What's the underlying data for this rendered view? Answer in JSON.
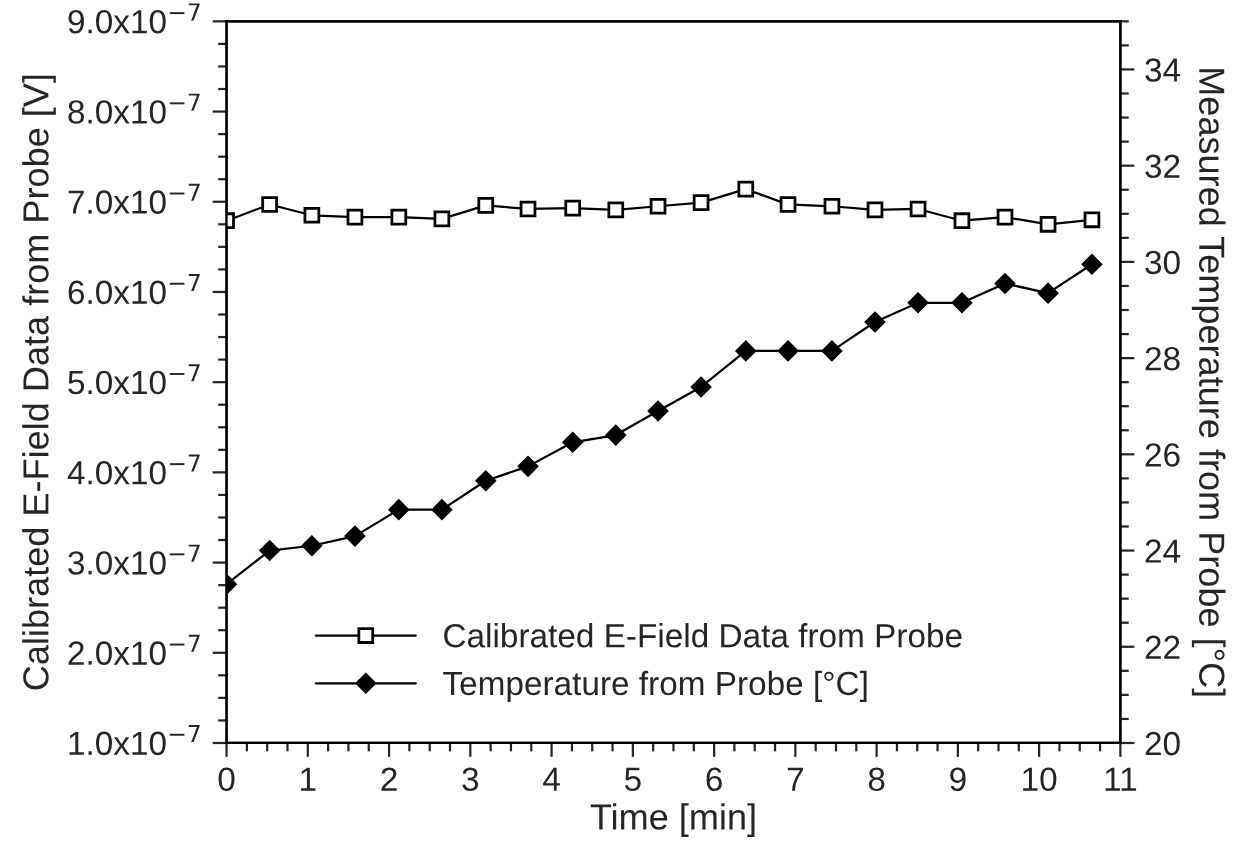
{
  "chart_data": {
    "type": "line",
    "xlabel": "Time [min]",
    "ylabel": "Calibrated E-Field Data from Probe [V]",
    "y2label": "Measured Temperature from Probe [°C]",
    "series": [
      {
        "name": "Calibrated E-Field Data from Probe",
        "color": "#000000",
        "marker": "square",
        "x": [
          0,
          0.53,
          1.05,
          1.58,
          2.12,
          2.65,
          3.19,
          3.71,
          4.26,
          4.79,
          5.31,
          5.84,
          6.39,
          6.91,
          7.45,
          7.98,
          8.51,
          9.05,
          9.58,
          10.11,
          10.65
        ],
        "values": [
          6.79e-07,
          6.97e-07,
          6.85e-07,
          6.83e-07,
          6.83e-07,
          6.81e-07,
          6.96e-07,
          6.92e-07,
          6.93e-07,
          6.91e-07,
          6.95e-07,
          6.99e-07,
          7.14e-07,
          6.97e-07,
          6.95e-07,
          6.91e-07,
          6.92e-07,
          6.79e-07,
          6.83e-07,
          6.75e-07,
          6.8e-07
        ]
      },
      {
        "name": "Temperature from Probe [°C]",
        "color": "#000000",
        "marker": "diamond",
        "axis": "y2",
        "x": [
          0,
          0.53,
          1.05,
          1.58,
          2.12,
          2.65,
          3.19,
          3.71,
          4.26,
          4.79,
          5.31,
          5.84,
          6.39,
          6.91,
          7.45,
          7.98,
          8.51,
          9.05,
          9.58,
          10.11,
          10.65
        ],
        "values": [
          23.3,
          24.0,
          24.1,
          24.3,
          24.85,
          24.85,
          25.45,
          25.75,
          26.25,
          26.4,
          26.9,
          27.4,
          28.15,
          28.15,
          28.15,
          28.75,
          29.15,
          29.15,
          29.55,
          29.35,
          29.95
        ]
      }
    ],
    "xlim": [
      0,
      11
    ],
    "xticks": [
      0,
      1,
      2,
      3,
      4,
      5,
      6,
      7,
      8,
      9,
      10,
      11
    ],
    "ylim": [
      1e-07,
      9e-07
    ],
    "yticks": [
      {
        "value": 1e-07,
        "label": "1.0x10$^{−7}$"
      },
      {
        "value": 2e-07,
        "label": "2.0x10$^{−7}$"
      },
      {
        "value": 3e-07,
        "label": "3.0x10$^{−7}$"
      },
      {
        "value": 4e-07,
        "label": "4.0x10$^{−7}$"
      },
      {
        "value": 5e-07,
        "label": "5.0x10$^{−7}$"
      },
      {
        "value": 6e-07,
        "label": "6.0x10$^{−7}$"
      },
      {
        "value": 7e-07,
        "label": "7.0x10$^{−7}$"
      },
      {
        "value": 8e-07,
        "label": "8.0x10$^{−7}$"
      },
      {
        "value": 9e-07,
        "label": "9.0x10$^{−7}$"
      }
    ],
    "y2lim": [
      20,
      35
    ],
    "y2ticks": [
      20,
      22,
      24,
      26,
      28,
      30,
      32,
      34
    ],
    "legend": "bottom left",
    "grid": false,
    "line_style": "solid"
  }
}
